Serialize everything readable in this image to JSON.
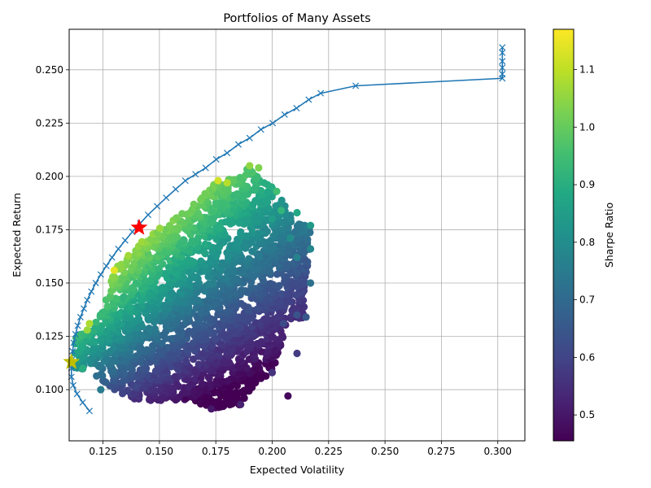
{
  "chart_data": {
    "type": "scatter",
    "title": "Portfolios of Many Assets",
    "xlabel": "Expected Volatility",
    "ylabel": "Expected Return",
    "xlim": [
      0.11,
      0.312
    ],
    "ylim": [
      0.076,
      0.269
    ],
    "xticks": [
      0.125,
      0.15,
      0.175,
      0.2,
      0.225,
      0.25,
      0.275,
      0.3
    ],
    "xtick_labels": [
      "0.125",
      "0.150",
      "0.175",
      "0.200",
      "0.225",
      "0.250",
      "0.275",
      "0.300"
    ],
    "yticks": [
      0.1,
      0.125,
      0.15,
      0.175,
      0.2,
      0.225,
      0.25
    ],
    "ytick_labels": [
      "0.100",
      "0.125",
      "0.150",
      "0.175",
      "0.200",
      "0.225",
      "0.250"
    ],
    "grid": true,
    "colorbar": {
      "label": "Sharpe Ratio",
      "colormap": "viridis",
      "range": [
        0.455,
        1.17
      ],
      "ticks": [
        0.5,
        0.6,
        0.7,
        0.8,
        0.9,
        1.0,
        1.1
      ],
      "tick_labels": [
        "0.5",
        "0.6",
        "0.7",
        "0.8",
        "0.9",
        "1.0",
        "1.1"
      ]
    },
    "cloud_boundary": [
      [
        0.112,
        0.11
      ],
      [
        0.113,
        0.125
      ],
      [
        0.118,
        0.128
      ],
      [
        0.125,
        0.14
      ],
      [
        0.13,
        0.156
      ],
      [
        0.14,
        0.169
      ],
      [
        0.15,
        0.176
      ],
      [
        0.163,
        0.185
      ],
      [
        0.175,
        0.197
      ],
      [
        0.185,
        0.2
      ],
      [
        0.19,
        0.205
      ],
      [
        0.195,
        0.198
      ],
      [
        0.203,
        0.193
      ],
      [
        0.21,
        0.178
      ],
      [
        0.217,
        0.177
      ],
      [
        0.215,
        0.15
      ],
      [
        0.214,
        0.134
      ],
      [
        0.207,
        0.131
      ],
      [
        0.2,
        0.108
      ],
      [
        0.195,
        0.105
      ],
      [
        0.186,
        0.093
      ],
      [
        0.173,
        0.091
      ],
      [
        0.165,
        0.095
      ],
      [
        0.14,
        0.095
      ],
      [
        0.13,
        0.1
      ],
      [
        0.12,
        0.108
      ],
      [
        0.112,
        0.11
      ]
    ],
    "outlier_points": [
      [
        0.207,
        0.097,
        0.47
      ],
      [
        0.186,
        0.093,
        0.52
      ],
      [
        0.173,
        0.091,
        0.5
      ],
      [
        0.211,
        0.117,
        0.58
      ],
      [
        0.2,
        0.108,
        0.56
      ],
      [
        0.217,
        0.15,
        0.72
      ],
      [
        0.217,
        0.166,
        0.78
      ],
      [
        0.217,
        0.177,
        0.84
      ],
      [
        0.211,
        0.162,
        0.77
      ],
      [
        0.211,
        0.183,
        0.88
      ],
      [
        0.202,
        0.193,
        0.95
      ],
      [
        0.204,
        0.184,
        0.92
      ],
      [
        0.194,
        0.204,
        1.03
      ],
      [
        0.19,
        0.205,
        1.05
      ],
      [
        0.2,
        0.18,
        0.85
      ],
      [
        0.208,
        0.171,
        0.8
      ],
      [
        0.215,
        0.134,
        0.65
      ],
      [
        0.211,
        0.135,
        0.64
      ],
      [
        0.205,
        0.131,
        0.62
      ],
      [
        0.124,
        0.1,
        0.75
      ],
      [
        0.116,
        0.11,
        0.9
      ],
      [
        0.118,
        0.128,
        1.06
      ],
      [
        0.119,
        0.131,
        1.08
      ],
      [
        0.13,
        0.156,
        1.14
      ],
      [
        0.176,
        0.198,
        1.12
      ],
      [
        0.18,
        0.197,
        1.09
      ]
    ],
    "efficient_frontier": {
      "x": [
        0.119,
        0.116,
        0.1135,
        0.1118,
        0.111,
        0.111,
        0.1112,
        0.1115,
        0.112,
        0.1128,
        0.1138,
        0.115,
        0.1165,
        0.118,
        0.1198,
        0.1218,
        0.124,
        0.1265,
        0.129,
        0.1318,
        0.1348,
        0.138,
        0.1415,
        0.145,
        0.149,
        0.153,
        0.1572,
        0.1615,
        0.166,
        0.1705,
        0.1752,
        0.18,
        0.185,
        0.19,
        0.195,
        0.2002,
        0.2055,
        0.2108,
        0.2162,
        0.2215,
        0.237,
        0.302,
        0.302,
        0.302,
        0.302,
        0.302,
        0.302
      ],
      "y": [
        0.09,
        0.094,
        0.098,
        0.102,
        0.106,
        0.11,
        0.114,
        0.118,
        0.122,
        0.126,
        0.13,
        0.134,
        0.138,
        0.142,
        0.146,
        0.15,
        0.154,
        0.158,
        0.162,
        0.166,
        0.17,
        0.174,
        0.178,
        0.182,
        0.186,
        0.19,
        0.194,
        0.198,
        0.201,
        0.204,
        0.208,
        0.211,
        0.215,
        0.218,
        0.222,
        0.225,
        0.229,
        0.232,
        0.236,
        0.239,
        0.2425,
        0.246,
        0.248,
        0.251,
        0.254,
        0.258,
        0.2605
      ],
      "color": "#1f77b4"
    },
    "max_sharpe_portfolio": {
      "x": 0.141,
      "y": 0.176,
      "marker": "star",
      "color": "#ff0000"
    },
    "min_volatility_portfolio": {
      "x": 0.111,
      "y": 0.113,
      "marker": "star",
      "color": "#bfbf00"
    }
  }
}
